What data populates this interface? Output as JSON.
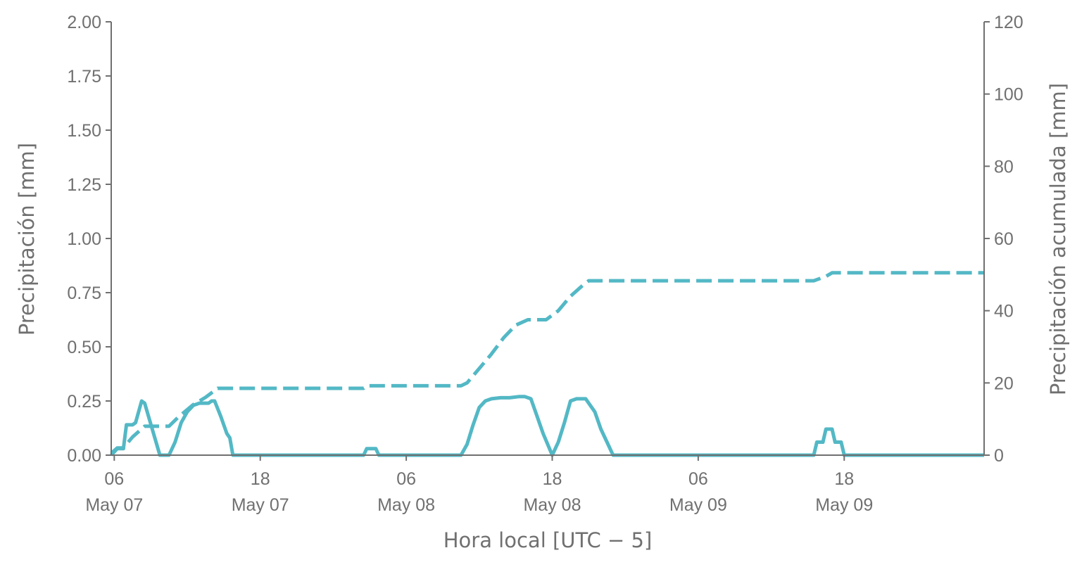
{
  "chart_data": {
    "type": "line",
    "xlabel": "Hora local [UTC − 5]",
    "ylabel_left": "Precipitación [mm]",
    "ylabel_right": "Precipitación acumulada [mm]",
    "x_range": [
      "2023-05-07 05:45",
      "2023-05-10 05:30"
    ],
    "x_ticks": [
      {
        "x": "2023-05-07 06:00",
        "line1": "06",
        "line2": "May 07"
      },
      {
        "x": "2023-05-07 18:00",
        "line1": "18",
        "line2": "May 07"
      },
      {
        "x": "2023-05-08 06:00",
        "line1": "06",
        "line2": "May 08"
      },
      {
        "x": "2023-05-08 18:00",
        "line1": "18",
        "line2": "May 08"
      },
      {
        "x": "2023-05-09 06:00",
        "line1": "06",
        "line2": "May 09"
      },
      {
        "x": "2023-05-09 18:00",
        "line1": "18",
        "line2": "May 09"
      }
    ],
    "y_left": {
      "min": 0,
      "max": 2,
      "ticks": [
        "0.00",
        "0.25",
        "0.50",
        "0.75",
        "1.00",
        "1.25",
        "1.50",
        "1.75",
        "2.00"
      ]
    },
    "y_right": {
      "min": 0,
      "max": 120,
      "ticks": [
        "0",
        "20",
        "40",
        "60",
        "80",
        "100",
        "120"
      ]
    },
    "grid": false,
    "color": "#53b8c5",
    "series": [
      {
        "axis": "left",
        "style": "solid",
        "points": [
          [
            "2023-05-07 05:45",
            0.0
          ],
          [
            "2023-05-07 06:15",
            0.03
          ],
          [
            "2023-05-07 06:45",
            0.03
          ],
          [
            "2023-05-07 07:00",
            0.14
          ],
          [
            "2023-05-07 07:30",
            0.14
          ],
          [
            "2023-05-07 07:45",
            0.15
          ],
          [
            "2023-05-07 08:15",
            0.25
          ],
          [
            "2023-05-07 08:30",
            0.24
          ],
          [
            "2023-05-07 09:45",
            0.0
          ],
          [
            "2023-05-07 10:30",
            0.0
          ],
          [
            "2023-05-07 11:00",
            0.06
          ],
          [
            "2023-05-07 11:30",
            0.15
          ],
          [
            "2023-05-07 12:00",
            0.2
          ],
          [
            "2023-05-07 12:30",
            0.23
          ],
          [
            "2023-05-07 13:00",
            0.24
          ],
          [
            "2023-05-07 13:45",
            0.24
          ],
          [
            "2023-05-07 14:00",
            0.25
          ],
          [
            "2023-05-07 14:15",
            0.25
          ],
          [
            "2023-05-07 14:45",
            0.18
          ],
          [
            "2023-05-07 15:15",
            0.1
          ],
          [
            "2023-05-07 15:30",
            0.08
          ],
          [
            "2023-05-07 15:45",
            0.0
          ],
          [
            "2023-05-08 02:30",
            0.0
          ],
          [
            "2023-05-08 02:45",
            0.03
          ],
          [
            "2023-05-08 03:30",
            0.03
          ],
          [
            "2023-05-08 03:45",
            0.0
          ],
          [
            "2023-05-08 10:30",
            0.0
          ],
          [
            "2023-05-08 11:00",
            0.05
          ],
          [
            "2023-05-08 11:30",
            0.14
          ],
          [
            "2023-05-08 12:00",
            0.22
          ],
          [
            "2023-05-08 12:30",
            0.25
          ],
          [
            "2023-05-08 13:00",
            0.26
          ],
          [
            "2023-05-08 13:45",
            0.265
          ],
          [
            "2023-05-08 14:30",
            0.265
          ],
          [
            "2023-05-08 15:15",
            0.27
          ],
          [
            "2023-05-08 15:45",
            0.27
          ],
          [
            "2023-05-08 16:15",
            0.26
          ],
          [
            "2023-05-08 16:45",
            0.18
          ],
          [
            "2023-05-08 17:15",
            0.1
          ],
          [
            "2023-05-08 18:00",
            0.0
          ],
          [
            "2023-05-08 18:30",
            0.06
          ],
          [
            "2023-05-08 19:00",
            0.15
          ],
          [
            "2023-05-08 19:30",
            0.25
          ],
          [
            "2023-05-08 20:00",
            0.26
          ],
          [
            "2023-05-08 20:45",
            0.26
          ],
          [
            "2023-05-08 21:00",
            0.24
          ],
          [
            "2023-05-08 21:30",
            0.2
          ],
          [
            "2023-05-08 22:00",
            0.12
          ],
          [
            "2023-05-08 22:30",
            0.06
          ],
          [
            "2023-05-08 23:00",
            0.0
          ],
          [
            "2023-05-09 15:30",
            0.0
          ],
          [
            "2023-05-09 15:45",
            0.06
          ],
          [
            "2023-05-09 16:15",
            0.06
          ],
          [
            "2023-05-09 16:30",
            0.12
          ],
          [
            "2023-05-09 17:00",
            0.12
          ],
          [
            "2023-05-09 17:15",
            0.06
          ],
          [
            "2023-05-09 17:45",
            0.06
          ],
          [
            "2023-05-09 18:00",
            0.0
          ],
          [
            "2023-05-10 05:30",
            0.0
          ]
        ]
      },
      {
        "axis": "right",
        "style": "dashed",
        "points": [
          [
            "2023-05-07 05:45",
            0.5
          ],
          [
            "2023-05-07 06:15",
            2
          ],
          [
            "2023-05-07 06:45",
            2
          ],
          [
            "2023-05-07 07:30",
            5
          ],
          [
            "2023-05-07 08:30",
            8
          ],
          [
            "2023-05-07 09:45",
            8
          ],
          [
            "2023-05-07 10:30",
            8
          ],
          [
            "2023-05-07 11:15",
            10.5
          ],
          [
            "2023-05-07 12:30",
            14
          ],
          [
            "2023-05-07 13:30",
            16
          ],
          [
            "2023-05-07 14:30",
            18.5
          ],
          [
            "2023-05-07 15:45",
            18.5
          ],
          [
            "2023-05-08 02:30",
            18.5
          ],
          [
            "2023-05-08 02:45",
            19.2
          ],
          [
            "2023-05-08 10:30",
            19.2
          ],
          [
            "2023-05-08 11:00",
            20
          ],
          [
            "2023-05-08 12:00",
            24
          ],
          [
            "2023-05-08 13:00",
            28
          ],
          [
            "2023-05-08 14:00",
            32.5
          ],
          [
            "2023-05-08 15:00",
            36
          ],
          [
            "2023-05-08 16:00",
            37.5
          ],
          [
            "2023-05-08 17:30",
            37.5
          ],
          [
            "2023-05-08 18:30",
            40
          ],
          [
            "2023-05-08 19:30",
            44
          ],
          [
            "2023-05-08 20:30",
            47
          ],
          [
            "2023-05-08 21:00",
            48.3
          ],
          [
            "2023-05-09 15:30",
            48.3
          ],
          [
            "2023-05-09 16:30",
            49.5
          ],
          [
            "2023-05-09 17:00",
            50.5
          ],
          [
            "2023-05-10 05:30",
            50.5
          ]
        ]
      }
    ]
  }
}
